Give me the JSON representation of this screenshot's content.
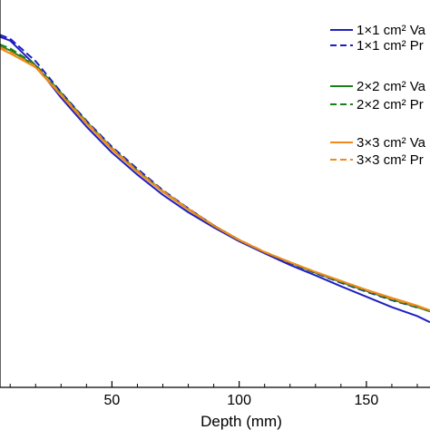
{
  "chart_data": {
    "type": "line",
    "title": "",
    "xlabel": "Depth (mm)",
    "ylabel": "",
    "xlim": [
      6,
      175
    ],
    "ylim": [
      0,
      1
    ],
    "x_ticks": [
      50,
      100,
      150
    ],
    "x_tick_labels": [
      "50",
      "100",
      "150"
    ],
    "grid": false,
    "legend_position": "top-right",
    "series": [
      {
        "name": "1×1 cm² Va",
        "color": "#1f1fbf",
        "dash": "solid",
        "x": [
          6,
          10,
          20,
          30,
          40,
          50,
          60,
          70,
          80,
          90,
          100,
          110,
          120,
          130,
          140,
          150,
          160,
          170,
          175
        ],
        "y": [
          0.905,
          0.895,
          0.831,
          0.748,
          0.673,
          0.606,
          0.549,
          0.497,
          0.452,
          0.413,
          0.377,
          0.346,
          0.316,
          0.289,
          0.261,
          0.234,
          0.207,
          0.184,
          0.168
        ]
      },
      {
        "name": "1×1 cm² Pr",
        "color": "#1f1fbf",
        "dash": "dashed",
        "x": [
          6,
          10,
          20,
          30,
          40,
          50,
          60,
          70,
          80,
          90,
          100,
          110,
          120,
          130,
          140,
          150,
          160,
          170,
          175
        ],
        "y": [
          0.91,
          0.9,
          0.842,
          0.762,
          0.688,
          0.621,
          0.564,
          0.509,
          0.462,
          0.418,
          0.38,
          0.348,
          0.321,
          0.295,
          0.27,
          0.247,
          0.225,
          0.206,
          0.2
        ]
      },
      {
        "name": "2×2 cm² Va",
        "color": "#1a7f1a",
        "dash": "solid",
        "x": [
          6,
          10,
          20,
          30,
          40,
          50,
          60,
          70,
          80,
          90,
          100,
          110,
          120,
          130,
          140,
          150,
          160,
          170,
          175
        ],
        "y": [
          0.88,
          0.87,
          0.83,
          0.757,
          0.683,
          0.615,
          0.557,
          0.505,
          0.459,
          0.417,
          0.38,
          0.349,
          0.322,
          0.296,
          0.272,
          0.249,
          0.227,
          0.207,
          0.196
        ]
      },
      {
        "name": "2×2 cm² Pr",
        "color": "#1a7f1a",
        "dash": "dashed",
        "x": [
          6,
          10,
          20,
          30,
          40,
          50,
          60,
          70,
          80,
          90,
          100,
          110,
          120,
          130,
          140,
          150,
          160,
          170,
          175
        ],
        "y": [
          0.885,
          0.875,
          0.833,
          0.76,
          0.686,
          0.618,
          0.56,
          0.507,
          0.461,
          0.418,
          0.381,
          0.349,
          0.323,
          0.297,
          0.272,
          0.25,
          0.228,
          0.208,
          0.197
        ]
      },
      {
        "name": "3×3 cm² Va",
        "color": "#f08a1c",
        "dash": "solid",
        "x": [
          6,
          10,
          20,
          30,
          40,
          50,
          60,
          70,
          80,
          90,
          100,
          110,
          120,
          130,
          140,
          150,
          160,
          170,
          175
        ],
        "y": [
          0.875,
          0.862,
          0.826,
          0.754,
          0.681,
          0.614,
          0.556,
          0.505,
          0.459,
          0.417,
          0.38,
          0.349,
          0.323,
          0.298,
          0.275,
          0.252,
          0.231,
          0.211,
          0.199
        ]
      },
      {
        "name": "3×3 cm² Pr",
        "color": "#f08a1c",
        "dash": "dashed",
        "x": [
          6,
          10,
          20,
          30,
          40,
          50,
          60,
          70,
          80,
          90,
          100,
          110,
          120,
          130,
          140,
          150,
          160,
          170,
          175
        ],
        "y": [
          0.878,
          0.866,
          0.829,
          0.757,
          0.684,
          0.617,
          0.559,
          0.507,
          0.461,
          0.418,
          0.381,
          0.35,
          0.323,
          0.298,
          0.274,
          0.251,
          0.229,
          0.209,
          0.198
        ]
      }
    ]
  }
}
